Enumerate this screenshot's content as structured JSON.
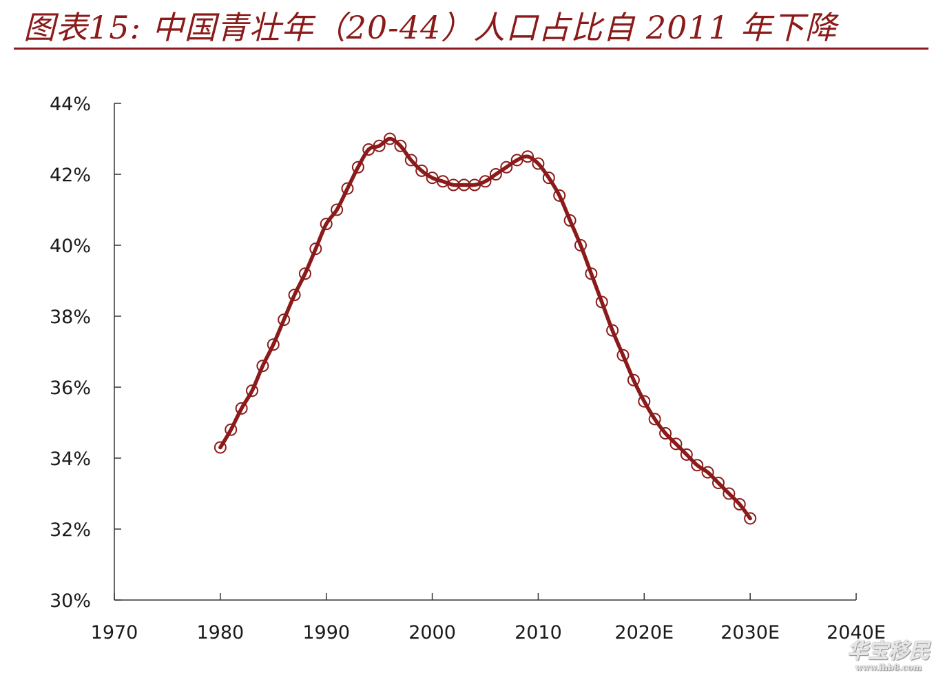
{
  "title": "图表15:  中国青壮年（20-44）人口占比自 2011 年下降",
  "watermark": {
    "main": "华宝移民",
    "url": "www.ihb8.com"
  },
  "colors": {
    "title": "#8b1a1a",
    "series": "#8b1a1a",
    "axis": "#333333"
  },
  "chart_data": {
    "type": "line",
    "title": "",
    "xlabel": "",
    "ylabel": "",
    "xlim": [
      1970,
      2040
    ],
    "ylim": [
      30,
      44
    ],
    "x_ticks": [
      {
        "value": 1970,
        "label": "1970"
      },
      {
        "value": 1980,
        "label": "1980"
      },
      {
        "value": 1990,
        "label": "1990"
      },
      {
        "value": 2000,
        "label": "2000"
      },
      {
        "value": 2010,
        "label": "2010"
      },
      {
        "value": 2020,
        "label": "2020E"
      },
      {
        "value": 2030,
        "label": "2030E"
      },
      {
        "value": 2040,
        "label": "2040E"
      }
    ],
    "y_ticks": [
      {
        "value": 30,
        "label": "30%"
      },
      {
        "value": 32,
        "label": "32%"
      },
      {
        "value": 34,
        "label": "34%"
      },
      {
        "value": 36,
        "label": "36%"
      },
      {
        "value": 38,
        "label": "38%"
      },
      {
        "value": 40,
        "label": "40%"
      },
      {
        "value": 42,
        "label": "42%"
      },
      {
        "value": 44,
        "label": "44%"
      }
    ],
    "grid": false,
    "marker": "open-circle",
    "series": [
      {
        "x": [
          1980,
          1981,
          1982,
          1983,
          1984,
          1985,
          1986,
          1987,
          1988,
          1989,
          1990,
          1991,
          1992,
          1993,
          1994,
          1995,
          1996,
          1997,
          1998,
          1999,
          2000,
          2001,
          2002,
          2003,
          2004,
          2005,
          2006,
          2007,
          2008,
          2009,
          2010,
          2011,
          2012,
          2013,
          2014,
          2015,
          2016,
          2017,
          2018,
          2019,
          2020,
          2021,
          2022,
          2023,
          2024,
          2025,
          2026,
          2027,
          2028,
          2029,
          2030
        ],
        "values": [
          34.3,
          34.8,
          35.4,
          35.9,
          36.6,
          37.2,
          37.9,
          38.6,
          39.2,
          39.9,
          40.6,
          41.0,
          41.6,
          42.2,
          42.7,
          42.8,
          43.0,
          42.8,
          42.4,
          42.1,
          41.9,
          41.8,
          41.7,
          41.7,
          41.7,
          41.8,
          42.0,
          42.2,
          42.4,
          42.5,
          42.3,
          41.9,
          41.4,
          40.7,
          40.0,
          39.2,
          38.4,
          37.6,
          36.9,
          36.2,
          35.6,
          35.1,
          34.7,
          34.4,
          34.1,
          33.8,
          33.6,
          33.3,
          33.0,
          32.7,
          32.3
        ]
      }
    ]
  }
}
